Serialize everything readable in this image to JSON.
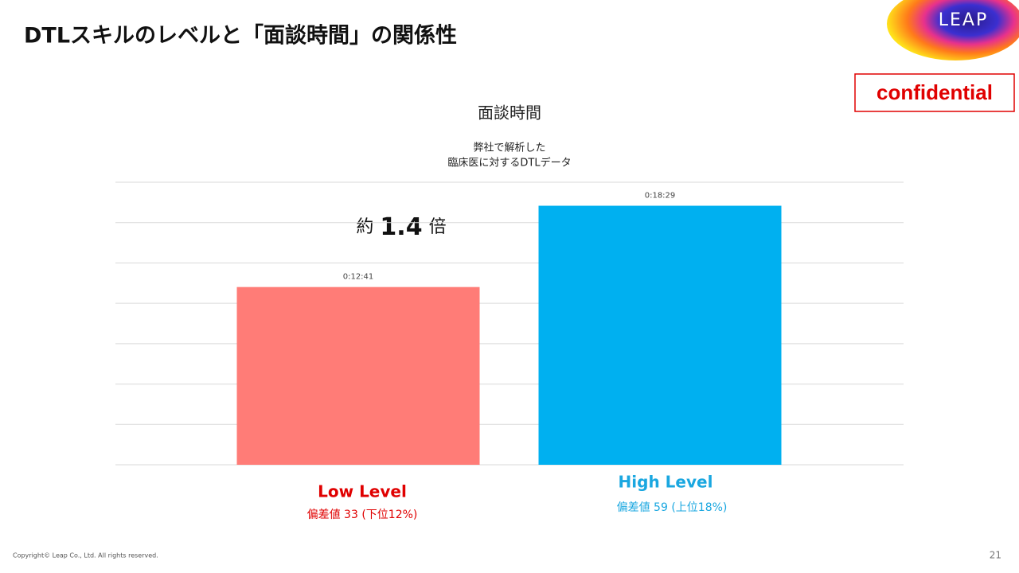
{
  "slide": {
    "title": "DTLスキルのレベルと「面談時間」の関係性",
    "logo": "LEAP",
    "confidential": "confidential",
    "copyright": "Copyright© Leap Co., Ltd.  All rights reserved.",
    "page_number": 21
  },
  "chart_data": {
    "type": "bar",
    "title": "面談時間",
    "subtitle": [
      "弊社で解析した",
      "臨床医に対するDTLデータ"
    ],
    "categories": [
      "Low Level",
      "High Level"
    ],
    "category_notes": [
      "偏差値 33 (下位12%)",
      "偏差値 59 (上位18%)"
    ],
    "values": [
      761,
      1109
    ],
    "value_labels": [
      "0:12:41",
      "0:18:29"
    ],
    "colors": [
      "#ff7c77",
      "#00b0f0"
    ],
    "label_colors": [
      "#e00000",
      "#1aa7e0"
    ],
    "ylim": [
      0,
      1209.6
    ],
    "yticks": [
      0,
      172.8,
      345.6,
      518.4,
      691.2,
      864,
      1036.8,
      1209.6
    ],
    "grid": true,
    "annotation": {
      "prefix": "約",
      "value": "1.4",
      "suffix": "倍"
    }
  }
}
